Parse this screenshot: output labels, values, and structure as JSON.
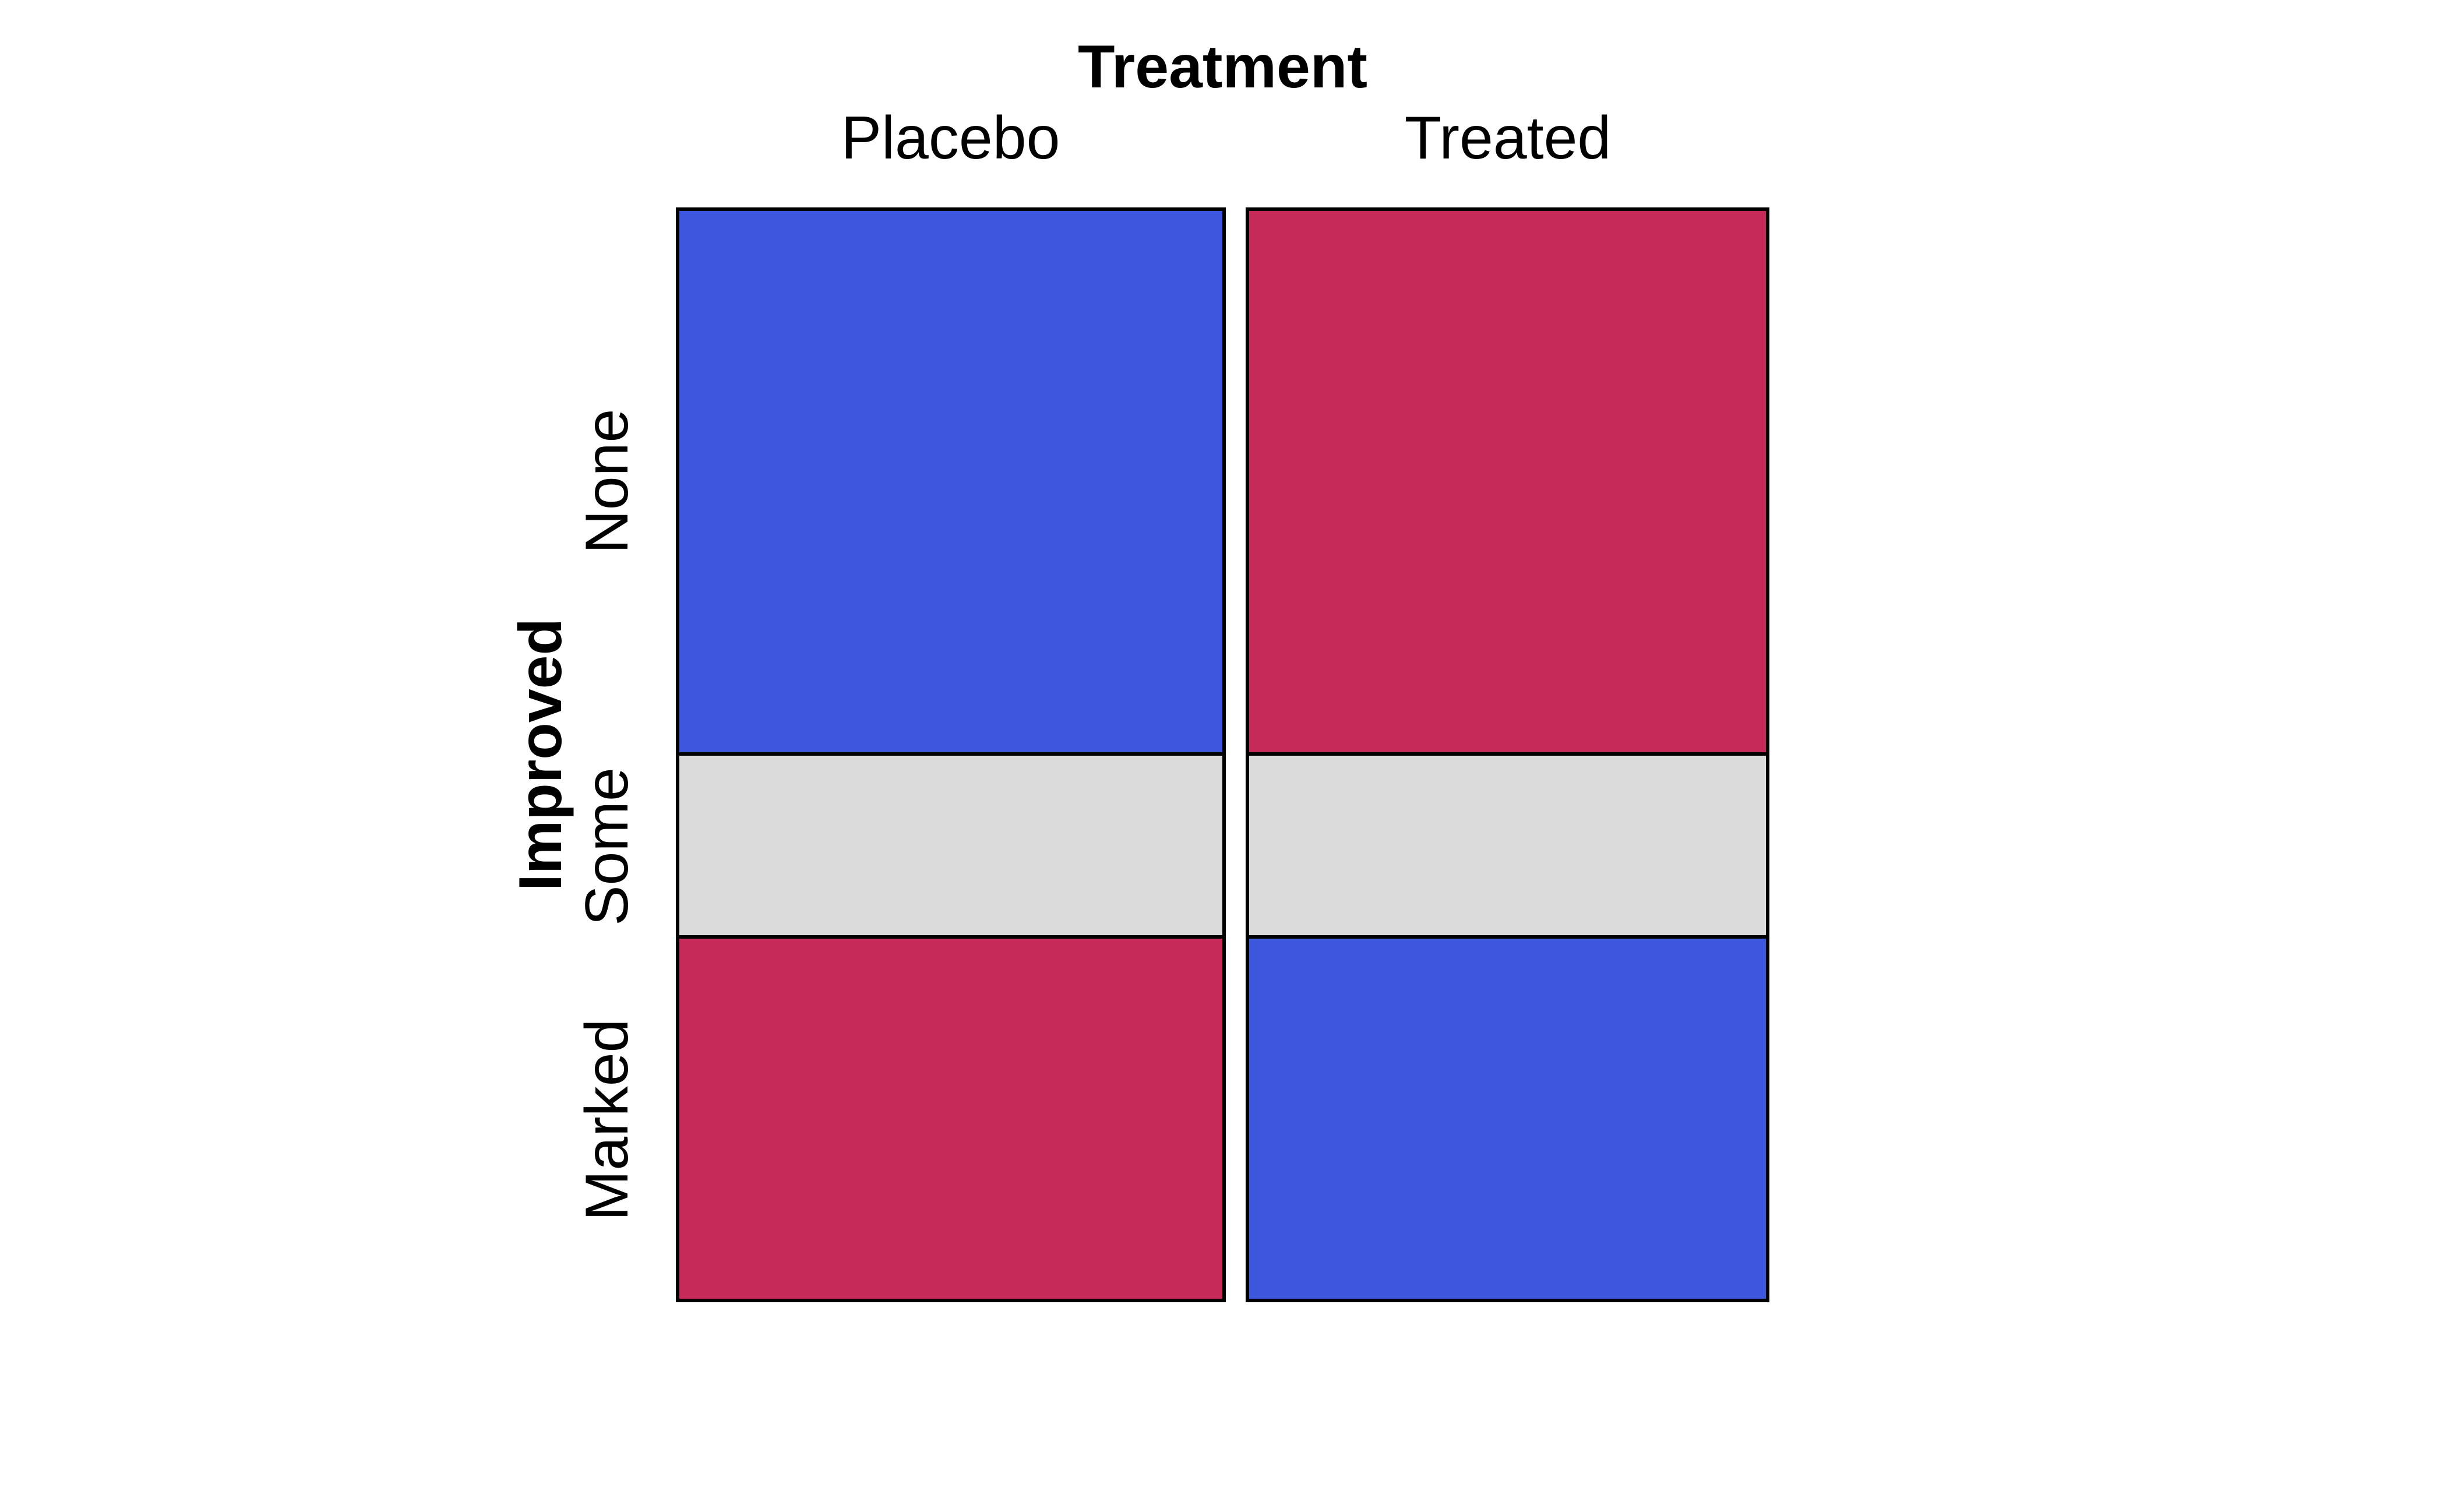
{
  "figure": {
    "background": "#FFFFFF",
    "border_color": "#000000"
  },
  "colors": {
    "positive_residual": "#3C57DB",
    "negative_residual": "#C62A58",
    "near_zero_residual": "#DBDBDB",
    "cell_border": "#000000"
  },
  "chart_data": {
    "type": "heatmap",
    "variant": "mosaic-plot",
    "title": "",
    "xlabel": "Treatment",
    "ylabel": "Improved",
    "x_categories": [
      "Placebo",
      "Treated"
    ],
    "y_categories": [
      "None",
      "Some",
      "Marked"
    ],
    "column_width_fractions": [
      0.512,
      0.488
    ],
    "row_height_fractions": [
      0.501,
      0.166,
      0.333
    ],
    "cells": [
      {
        "column": "Placebo",
        "row": "None",
        "color": "#3C57DB",
        "residual_sign": "positive"
      },
      {
        "column": "Placebo",
        "row": "Some",
        "color": "#DBDBDB",
        "residual_sign": "near-zero"
      },
      {
        "column": "Placebo",
        "row": "Marked",
        "color": "#C62A58",
        "residual_sign": "negative"
      },
      {
        "column": "Treated",
        "row": "None",
        "color": "#C62A58",
        "residual_sign": "negative"
      },
      {
        "column": "Treated",
        "row": "Some",
        "color": "#DBDBDB",
        "residual_sign": "near-zero"
      },
      {
        "column": "Treated",
        "row": "Marked",
        "color": "#3C57DB",
        "residual_sign": "positive"
      }
    ],
    "legend_position": "none",
    "grid": "off"
  }
}
